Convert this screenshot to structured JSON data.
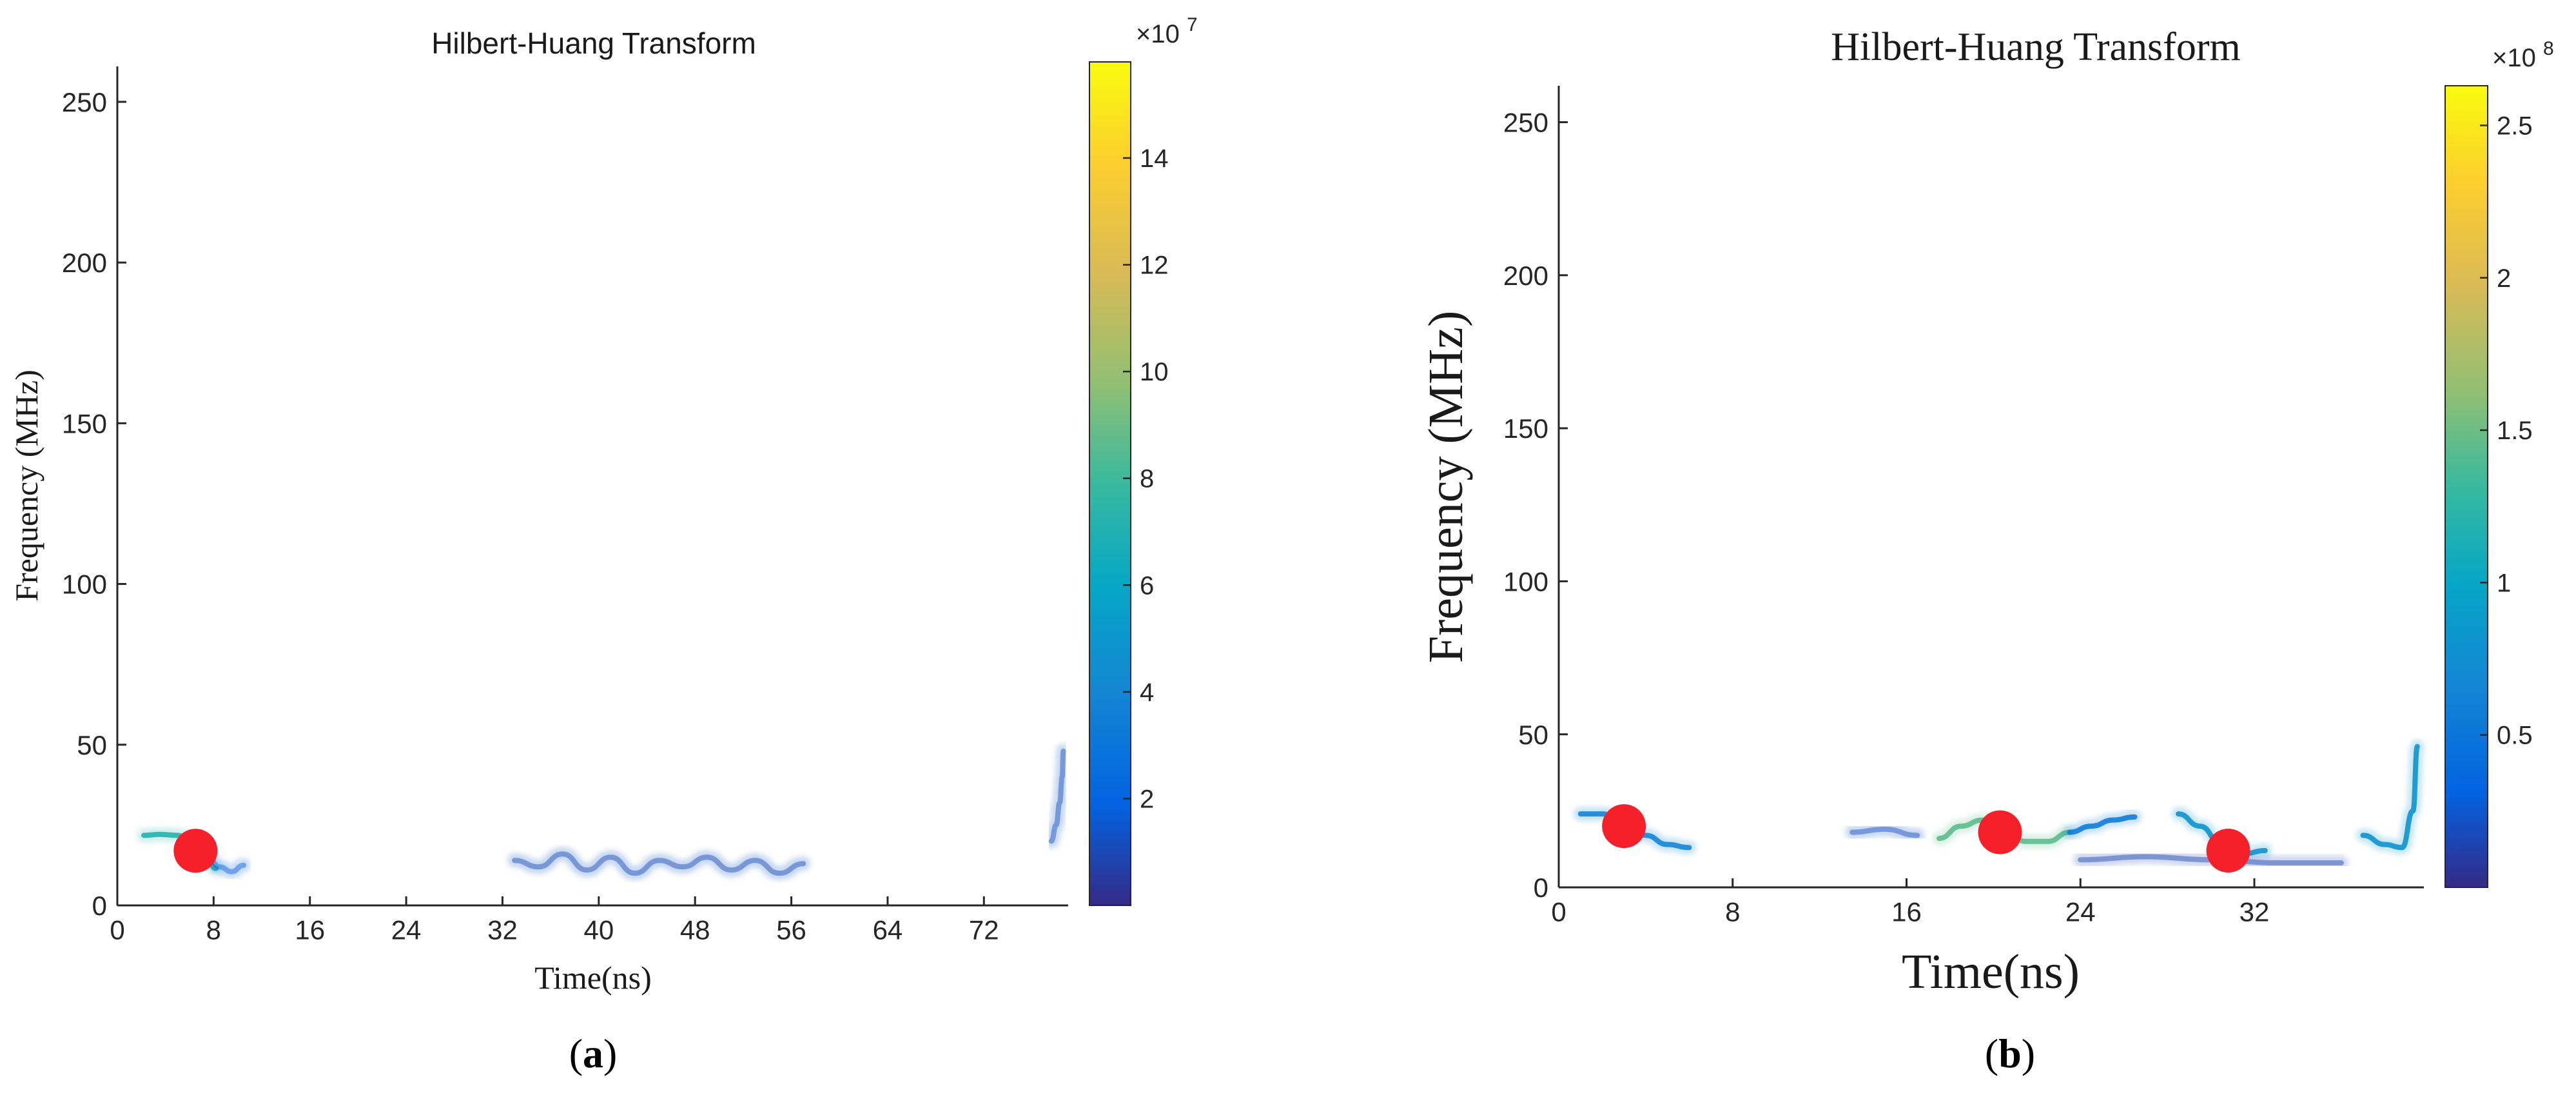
{
  "chart_data": [
    {
      "type": "heatmap",
      "panel_label": "a",
      "title": "Hilbert-Huang Transform",
      "xlabel": "Time(ns)",
      "ylabel": "Frequency (MHz)",
      "xlim": [
        0,
        79
      ],
      "ylim": [
        0,
        256
      ],
      "xticks": [
        0,
        8,
        16,
        24,
        32,
        40,
        48,
        56,
        64,
        72
      ],
      "yticks": [
        0,
        50,
        100,
        150,
        200,
        250
      ],
      "colorbar": {
        "range": [
          0,
          1.58
        ],
        "ticks": [
          2,
          4,
          6,
          8,
          10,
          12,
          14
        ],
        "tick_scale": 0.1,
        "exponent_base": "×10",
        "exponent_power": "7",
        "colormap": "parula"
      },
      "traces": [
        {
          "x": [
            2.2,
            3.5,
            5.0,
            6.3,
            7.3,
            8.2
          ],
          "y": [
            21.8,
            22.1,
            21.8,
            19.0,
            15.0,
            11.5
          ],
          "level": 0.45
        },
        {
          "x": [
            7.5,
            8.5,
            9.5,
            10.5
          ],
          "y": [
            15.0,
            12.0,
            10.5,
            12.5
          ],
          "level": 0.12
        },
        {
          "x": [
            33,
            35,
            37,
            39,
            41,
            43,
            45,
            47,
            49,
            51,
            53,
            55,
            57
          ],
          "y": [
            14,
            12,
            16,
            11,
            15,
            10,
            14,
            12,
            15,
            11,
            14,
            10,
            13
          ],
          "level": 0.07
        },
        {
          "x": [
            77.6,
            78.0,
            78.3,
            78.5,
            78.6
          ],
          "y": [
            20,
            25,
            32,
            40,
            48
          ],
          "level": 0.08
        }
      ],
      "markers": [
        {
          "x": 6.5,
          "y": 17
        }
      ]
    },
    {
      "type": "heatmap",
      "panel_label": "b",
      "title": "Hilbert-Huang Transform",
      "xlabel": "Time(ns)",
      "ylabel": "Frequency (MHz)",
      "xlim": [
        0,
        39.8
      ],
      "ylim": [
        0,
        256
      ],
      "xticks": [
        0,
        8,
        16,
        24,
        32
      ],
      "yticks": [
        0,
        50,
        100,
        150,
        200,
        250
      ],
      "colorbar": {
        "range": [
          0,
          2.63
        ],
        "ticks": [
          0.5,
          1,
          1.5,
          2,
          2.5
        ],
        "tick_scale": 1,
        "exponent_base": "×10",
        "exponent_power": "8",
        "colormap": "parula"
      },
      "traces": [
        {
          "x": [
            1.0,
            2.0,
            3.0,
            4.0,
            5.0,
            6.0
          ],
          "y": [
            24,
            24,
            21,
            17,
            14,
            13
          ],
          "level": 0.25
        },
        {
          "x": [
            17.5,
            18.5,
            19.5,
            20.5,
            21.5,
            22.5,
            23.5
          ],
          "y": [
            16,
            20,
            22,
            18,
            15,
            15,
            18
          ],
          "level": 0.55
        },
        {
          "x": [
            23.5,
            24.5,
            25.5,
            26.5
          ],
          "y": [
            18,
            20,
            22,
            23
          ],
          "level": 0.22
        },
        {
          "x": [
            13.5,
            15.0,
            16.5
          ],
          "y": [
            18,
            19,
            17
          ],
          "level": 0.08
        },
        {
          "x": [
            28.5,
            29.5,
            30.5,
            31.5,
            32.5
          ],
          "y": [
            24,
            20,
            14,
            11,
            12
          ],
          "level": 0.3
        },
        {
          "x": [
            24,
            27,
            30,
            33,
            36
          ],
          "y": [
            9,
            10,
            9,
            8,
            8
          ],
          "level": 0.06
        },
        {
          "x": [
            37.0,
            38.0,
            38.8,
            39.3,
            39.5
          ],
          "y": [
            17,
            14,
            13,
            25,
            46
          ],
          "level": 0.3
        }
      ],
      "markers": [
        {
          "x": 3.0,
          "y": 20
        },
        {
          "x": 20.3,
          "y": 18
        },
        {
          "x": 30.8,
          "y": 12
        }
      ]
    }
  ]
}
